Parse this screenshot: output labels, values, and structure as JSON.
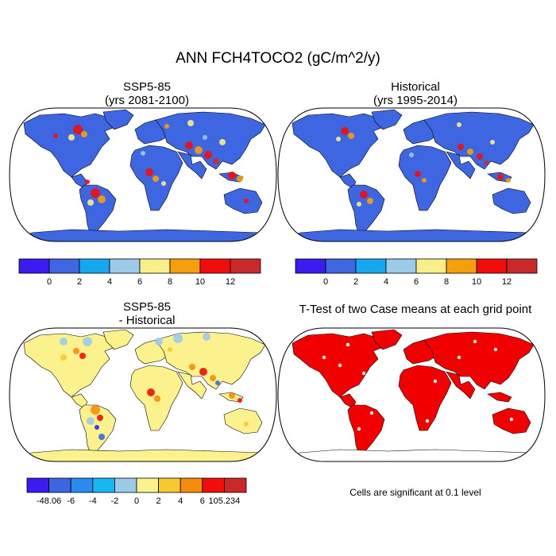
{
  "main_title": "ANN FCH4TOCO2 (gC/m^2/y)",
  "panels": [
    {
      "title_line1": "SSP5-85",
      "title_line2": "(yrs 2081-2100)"
    },
    {
      "title_line1": "Historical",
      "title_line2": "(yrs 1995-2014)"
    },
    {
      "title_line1": "SSP5-85",
      "title_line2": "- Historical"
    },
    {
      "title_line1": "T-Test of two Case means at each grid point",
      "title_line2": ""
    }
  ],
  "colorbar_abs": {
    "colors": [
      "#3b1cf0",
      "#3d66e0",
      "#15a8f0",
      "#9ccbe8",
      "#f8ee8a",
      "#f59f0d",
      "#f20d0d",
      "#c82a2a"
    ],
    "labels": [
      "0",
      "2",
      "4",
      "6",
      "8",
      "10",
      "12"
    ]
  },
  "colorbar_diff": {
    "colors": [
      "#3b1cf0",
      "#3d66e0",
      "#2a8af0",
      "#15b8f0",
      "#9ccbe8",
      "#fbf28e",
      "#f8c832",
      "#f58c0d",
      "#f20d0d",
      "#c82a2a"
    ],
    "labels": [
      "-48.06",
      "-6",
      "-4",
      "-2",
      "0",
      "2",
      "4",
      "6",
      "105.234"
    ]
  },
  "significance_note": "Cells are significant at 0.1 level",
  "colors": {
    "ocean": "#ffffff",
    "land_abs": "#3d66e0",
    "land_diff": "#fbf28e",
    "significant": "#f00000",
    "outline": "#000000"
  }
}
